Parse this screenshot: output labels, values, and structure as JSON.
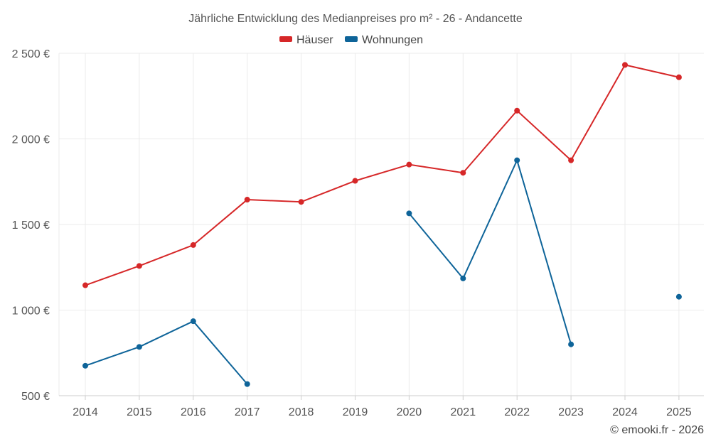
{
  "chart_data": {
    "type": "line",
    "title": "Jährliche Entwicklung des Medianpreises pro m² - 26 - Andancette",
    "categories": [
      "2014",
      "2015",
      "2016",
      "2017",
      "2018",
      "2019",
      "2020",
      "2021",
      "2022",
      "2023",
      "2024",
      "2025"
    ],
    "series": [
      {
        "name": "Häuser",
        "color": "#d62728",
        "values": [
          1145,
          1258,
          1380,
          1645,
          1632,
          1755,
          1850,
          1802,
          2165,
          1875,
          2432,
          2360
        ]
      },
      {
        "name": "Wohnungen",
        "color": "#0e6499",
        "values": [
          675,
          785,
          935,
          568,
          null,
          null,
          1565,
          1185,
          1875,
          800,
          null,
          1078
        ]
      }
    ],
    "ylim": [
      500,
      2500
    ],
    "yticks": [
      500,
      1000,
      1500,
      2000,
      2500
    ],
    "ytick_labels": [
      "500 €",
      "1 000 €",
      "1 500 €",
      "2 000 €",
      "2 500 €"
    ],
    "xlabel": "",
    "ylabel": "",
    "grid": true,
    "legend_position": "top-center"
  },
  "credit": "© emooki.fr - 2026"
}
